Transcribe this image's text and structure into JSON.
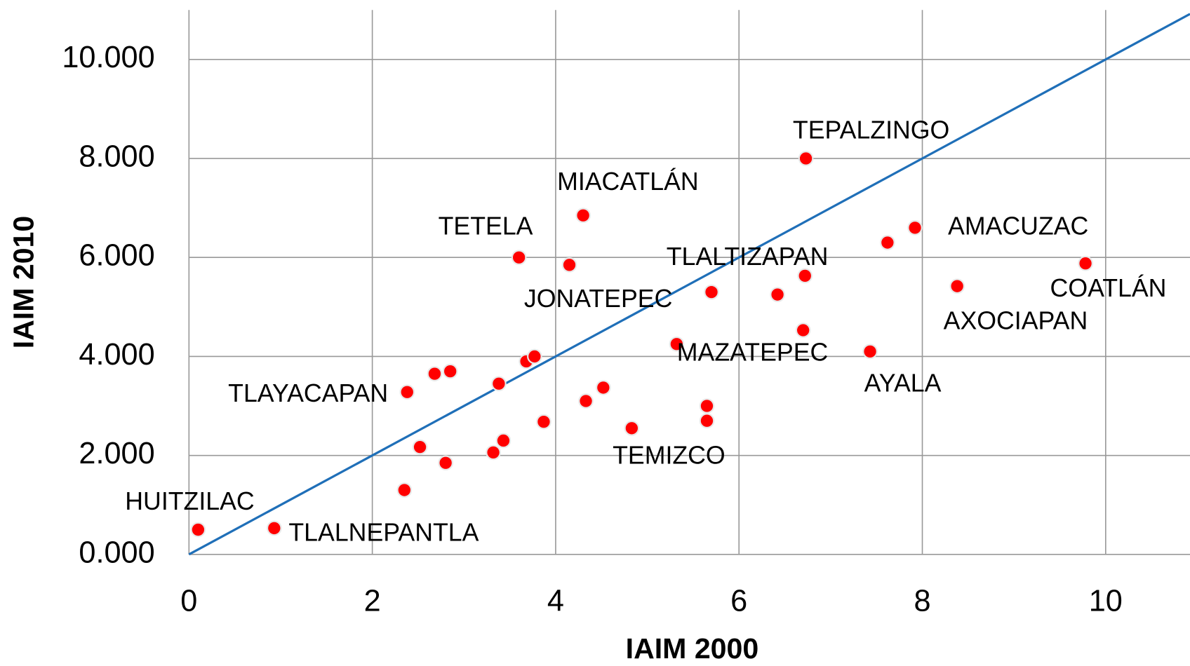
{
  "chart_data": {
    "type": "scatter",
    "x_label": "IAIM 2000",
    "y_label": "IAIM 2010",
    "x": [
      0.1,
      0.93,
      2.35,
      2.38,
      2.52,
      2.68,
      2.8,
      2.85,
      3.32,
      3.38,
      3.43,
      3.6,
      3.68,
      3.77,
      3.87,
      4.15,
      4.3,
      4.33,
      4.52,
      4.83,
      5.32,
      5.65,
      5.65,
      5.7,
      6.42,
      6.7,
      6.72,
      6.73,
      7.43,
      7.62,
      7.92,
      8.38,
      9.78
    ],
    "values": [
      0.5,
      0.53,
      1.3,
      3.28,
      2.17,
      3.65,
      1.85,
      3.7,
      2.06,
      3.45,
      2.3,
      6.0,
      3.9,
      4.0,
      2.68,
      5.85,
      6.85,
      3.1,
      3.37,
      2.55,
      4.25,
      3.0,
      2.7,
      5.3,
      5.25,
      4.53,
      5.63,
      8.0,
      4.1,
      6.3,
      6.6,
      5.42,
      5.88
    ],
    "point_labels": [
      "HUITZILAC",
      "TLALNEPANTLA",
      null,
      "TLAYACAPAN",
      null,
      null,
      null,
      null,
      null,
      null,
      null,
      "TETELA",
      null,
      null,
      null,
      "JONATEPEC",
      "MIACATLÁN",
      null,
      null,
      null,
      "MAZATEPEC",
      null,
      "TEMIZCO",
      null,
      null,
      null,
      "TLALTIZAPAN",
      "TEPALZINGO",
      "AYALA",
      null,
      "AMACUZAC",
      "AXOCIAPAN",
      "COATLÁN"
    ],
    "color": "#ff0000",
    "line_color": "#1f6fb8",
    "xlim": [
      0,
      10.92
    ],
    "ylim": [
      0,
      11
    ],
    "xticks": [
      0,
      2,
      4,
      6,
      8,
      10
    ],
    "yticks": [
      {
        "value": 0,
        "label": "0.000"
      },
      {
        "value": 2,
        "label": "2.000"
      },
      {
        "value": 4,
        "label": "4.000"
      },
      {
        "value": 6,
        "label": "6.000"
      },
      {
        "value": 8,
        "label": "8.000"
      },
      {
        "value": 10,
        "label": "10.000"
      }
    ],
    "grid": true
  }
}
